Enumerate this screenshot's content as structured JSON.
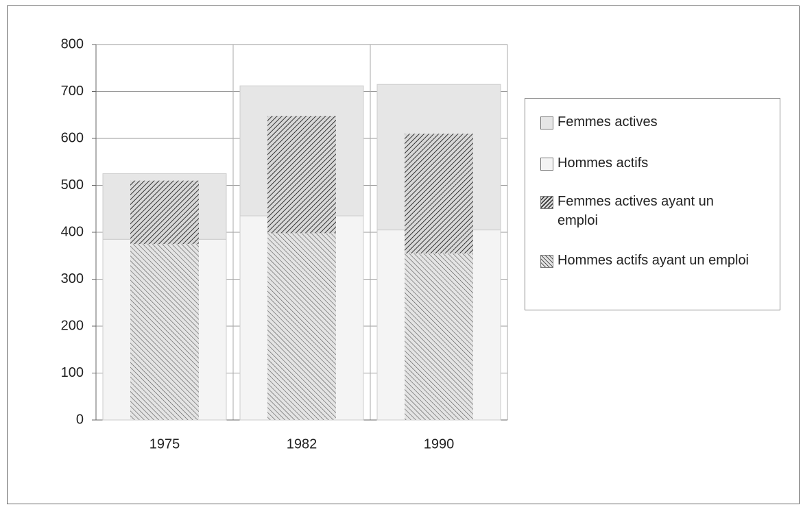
{
  "chart_data": {
    "type": "bar",
    "categories": [
      "1975",
      "1982",
      "1990"
    ],
    "series": [
      {
        "name": "Femmes actives",
        "color": "#e6e6e6",
        "pattern": "none",
        "stack": "outer",
        "values": [
          140,
          277,
          310
        ]
      },
      {
        "name": "Hommes actifs",
        "color": "#f4f4f4",
        "pattern": "none",
        "stack": "outer",
        "values": [
          385,
          435,
          405
        ]
      },
      {
        "name": "Femmes actives ayant un emploi",
        "color": "#555555",
        "pattern": "dense",
        "stack": "inner",
        "values": [
          135,
          250,
          255
        ]
      },
      {
        "name": "Hommes actifs ayant un emploi",
        "color": "#777777",
        "pattern": "sparse",
        "stack": "inner",
        "values": [
          375,
          398,
          355
        ]
      }
    ],
    "ylim": [
      0,
      800
    ],
    "yticks": [
      0,
      100,
      200,
      300,
      400,
      500,
      600,
      700,
      800
    ],
    "grid": true
  }
}
